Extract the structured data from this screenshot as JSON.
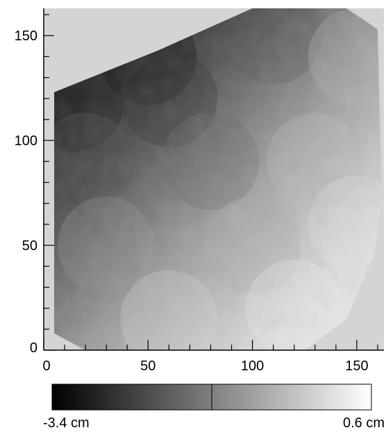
{
  "chart_data": {
    "type": "heatmap",
    "title": "",
    "xlabel": "",
    "ylabel": "",
    "xlim": [
      0,
      163
    ],
    "ylim": [
      0,
      163
    ],
    "xticks": [
      0,
      50,
      100,
      150
    ],
    "yticks": [
      0,
      50,
      100,
      150
    ],
    "colormap": "grayscale",
    "colorbar": {
      "min_label": "-3.4 cm",
      "max_label": "0.6 cm",
      "min_value": -3.4,
      "max_value": 0.6,
      "divider_value": -1.4
    },
    "region_outline": [
      [
        5,
        8
      ],
      [
        5,
        123
      ],
      [
        55,
        143
      ],
      [
        100,
        163
      ],
      [
        145,
        163
      ],
      [
        160,
        153
      ],
      [
        162,
        70
      ],
      [
        158,
        45
      ],
      [
        145,
        15
      ],
      [
        125,
        0
      ],
      [
        20,
        0
      ]
    ],
    "depth_samples": [
      {
        "x": 50,
        "y": 140,
        "value": -3.3
      },
      {
        "x": 15,
        "y": 118,
        "value": -3.1
      },
      {
        "x": 60,
        "y": 120,
        "value": -2.7
      },
      {
        "x": 110,
        "y": 150,
        "value": -1.9
      },
      {
        "x": 150,
        "y": 140,
        "value": -0.4
      },
      {
        "x": 20,
        "y": 90,
        "value": -2.0
      },
      {
        "x": 80,
        "y": 90,
        "value": -1.7
      },
      {
        "x": 130,
        "y": 90,
        "value": -0.3
      },
      {
        "x": 30,
        "y": 50,
        "value": -0.9
      },
      {
        "x": 100,
        "y": 50,
        "value": -0.6
      },
      {
        "x": 150,
        "y": 60,
        "value": 0.3
      },
      {
        "x": 60,
        "y": 15,
        "value": 0.1
      },
      {
        "x": 120,
        "y": 20,
        "value": 0.4
      }
    ]
  }
}
